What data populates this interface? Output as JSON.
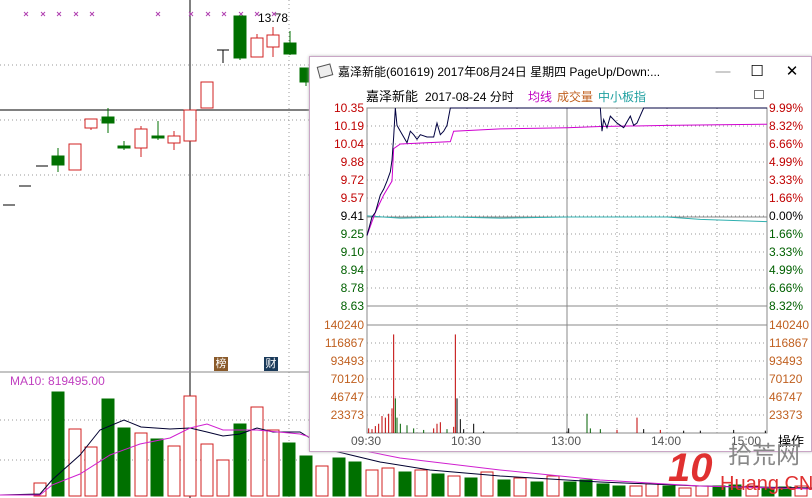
{
  "kline": {
    "high_label": "13.78",
    "ma10_label": "MA10: 819495.00",
    "tags": [
      "榜",
      "财"
    ]
  },
  "window": {
    "title": "嘉泽新能(601619) 2017年08月24日 星期四 PageUp/Down:...",
    "controls": {
      "minimize": "—",
      "maximize": "☐",
      "close": "✕"
    },
    "header": {
      "name": "嘉泽新能",
      "date_mode": "2017-08-24 分时",
      "avg_label": "均线",
      "vol_label": "成交量",
      "index_label": "中小板指"
    },
    "price_labels_left": [
      "10.35",
      "10.19",
      "10.04",
      "9.88",
      "9.72",
      "9.57",
      "9.41",
      "9.25",
      "9.10",
      "8.94",
      "8.78",
      "8.63"
    ],
    "pct_labels_right": [
      "9.99%",
      "8.32%",
      "6.66%",
      "4.99%",
      "3.33%",
      "1.66%",
      "0.00%",
      "1.66%",
      "3.33%",
      "4.99%",
      "6.66%",
      "8.32%"
    ],
    "volume_labels": [
      "140240",
      "116867",
      "93493",
      "70120",
      "46747",
      "23373"
    ],
    "time_labels": [
      "09:30",
      "10:30",
      "13:00",
      "14:00",
      "15:00"
    ],
    "action_button": "操作",
    "colors": {
      "up": "#c00000",
      "down": "#006000",
      "price_line": "#000040",
      "avg_line": "#d000d0",
      "index_line": "#30b0b0",
      "vol_label": "#c06020"
    }
  },
  "chart_data": {
    "type": "line",
    "prev_close": 9.41,
    "ylim": [
      8.63,
      10.35
    ],
    "vol_max": 140240,
    "price": [
      [
        0,
        9.25
      ],
      [
        3,
        9.41
      ],
      [
        5,
        9.45
      ],
      [
        8,
        9.6
      ],
      [
        10,
        9.65
      ],
      [
        12,
        9.72
      ],
      [
        14,
        9.8
      ],
      [
        15,
        9.9
      ],
      [
        16,
        10.1
      ],
      [
        17,
        10.35
      ],
      [
        18,
        10.2
      ],
      [
        20,
        10.15
      ],
      [
        22,
        10.1
      ],
      [
        24,
        10.05
      ],
      [
        26,
        10.15
      ],
      [
        28,
        10.12
      ],
      [
        30,
        10.08
      ],
      [
        32,
        10.12
      ],
      [
        36,
        10.1
      ],
      [
        40,
        10.1
      ],
      [
        42,
        10.22
      ],
      [
        44,
        10.12
      ],
      [
        46,
        10.15
      ],
      [
        48,
        10.2
      ],
      [
        50,
        10.35
      ],
      [
        140,
        10.35
      ],
      [
        141,
        10.15
      ],
      [
        142,
        10.25
      ],
      [
        144,
        10.18
      ],
      [
        146,
        10.28
      ],
      [
        150,
        10.22
      ],
      [
        154,
        10.18
      ],
      [
        158,
        10.28
      ],
      [
        160,
        10.2
      ],
      [
        162,
        10.22
      ],
      [
        166,
        10.35
      ],
      [
        240,
        10.35
      ]
    ],
    "avg": [
      [
        0,
        9.25
      ],
      [
        5,
        9.45
      ],
      [
        10,
        9.6
      ],
      [
        15,
        9.72
      ],
      [
        16,
        10.0
      ],
      [
        20,
        10.04
      ],
      [
        50,
        10.06
      ],
      [
        52,
        10.15
      ],
      [
        80,
        10.17
      ],
      [
        120,
        10.18
      ],
      [
        140,
        10.19
      ],
      [
        180,
        10.2
      ],
      [
        240,
        10.21
      ]
    ],
    "index": [
      [
        0,
        9.42
      ],
      [
        20,
        9.4
      ],
      [
        50,
        9.41
      ],
      [
        80,
        9.4
      ],
      [
        120,
        9.41
      ],
      [
        180,
        9.41
      ],
      [
        200,
        9.39
      ],
      [
        240,
        9.37
      ]
    ],
    "volume": [
      [
        1,
        6000,
        "u"
      ],
      [
        3,
        5000,
        "u"
      ],
      [
        5,
        9000,
        "u"
      ],
      [
        7,
        12000,
        "u"
      ],
      [
        9,
        22000,
        "u"
      ],
      [
        11,
        20000,
        "u"
      ],
      [
        13,
        25000,
        "u"
      ],
      [
        15,
        32000,
        "u"
      ],
      [
        16,
        128000,
        "u"
      ],
      [
        17,
        45000,
        "d"
      ],
      [
        18,
        20000,
        "d"
      ],
      [
        20,
        12000,
        "d"
      ],
      [
        24,
        10000,
        "d"
      ],
      [
        28,
        6000,
        "d"
      ],
      [
        34,
        4000,
        "d"
      ],
      [
        40,
        6000,
        "u"
      ],
      [
        42,
        12000,
        "u"
      ],
      [
        44,
        14000,
        "u"
      ],
      [
        48,
        5000,
        "d"
      ],
      [
        52,
        8000,
        "u"
      ],
      [
        53,
        128000,
        "u"
      ],
      [
        54,
        45000,
        "n"
      ],
      [
        56,
        18000,
        "n"
      ],
      [
        58,
        5000,
        "n"
      ],
      [
        64,
        12000,
        "n"
      ],
      [
        70,
        2000,
        "n"
      ],
      [
        120,
        2000,
        "n"
      ],
      [
        121,
        6000,
        "n"
      ],
      [
        132,
        25000,
        "d"
      ],
      [
        134,
        6000,
        "d"
      ],
      [
        140,
        5000,
        "d"
      ],
      [
        150,
        4000,
        "u"
      ],
      [
        162,
        20000,
        "u"
      ],
      [
        166,
        5000,
        "n"
      ],
      [
        176,
        4000,
        "u"
      ],
      [
        190,
        3000,
        "n"
      ],
      [
        200,
        3000,
        "n"
      ],
      [
        220,
        4000,
        "n"
      ],
      [
        239,
        3000,
        "n"
      ]
    ]
  },
  "watermark": {
    "logo": "10",
    "cn": "拾荒网",
    "en": "Huang.CN"
  }
}
